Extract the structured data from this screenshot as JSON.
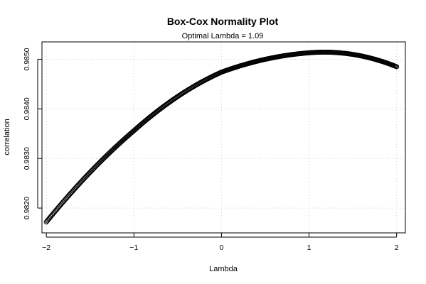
{
  "chart_data": {
    "type": "scatter",
    "title": "Box-Cox Normality Plot",
    "subtitle": "Optimal Lambda = 1.09",
    "xlabel": "Lambda",
    "ylabel": "correlation",
    "xlim": [
      -2.05,
      2.1
    ],
    "ylim": [
      0.9815,
      0.98535
    ],
    "x_ticks": [
      -2,
      -1,
      0,
      1,
      2
    ],
    "x_tick_labels": [
      "−2",
      "−1",
      "0",
      "1",
      "2"
    ],
    "y_ticks": [
      0.982,
      0.983,
      0.984,
      0.985
    ],
    "y_tick_labels": [
      "0.9820",
      "0.9830",
      "0.9840",
      "0.9850"
    ],
    "grid": true,
    "curve_key_points": [
      {
        "x": -2.0,
        "y": 0.98172
      },
      {
        "x": -1.0,
        "y": 0.98356
      },
      {
        "x": 0.0,
        "y": 0.98474
      },
      {
        "x": 1.0,
        "y": 0.98513
      },
      {
        "x": 1.09,
        "y": 0.98514
      },
      {
        "x": 2.0,
        "y": 0.98485
      }
    ],
    "optimal_lambda": 1.09,
    "series": [
      {
        "lambda_start": -2,
        "lambda_end": 2,
        "lambda_step": 0.01,
        "marker": "open-circle",
        "color": "#000000"
      }
    ]
  }
}
